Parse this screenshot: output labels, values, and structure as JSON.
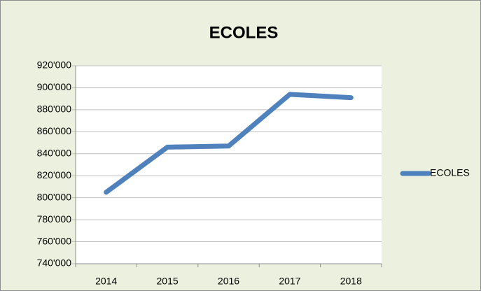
{
  "chart_data": {
    "type": "line",
    "title": "ECOLES",
    "categories": [
      "2014",
      "2015",
      "2016",
      "2017",
      "2018"
    ],
    "series": [
      {
        "name": "ECOLES",
        "color": "#4f81bd",
        "values": [
          805000,
          846000,
          847000,
          894000,
          891000
        ]
      }
    ],
    "ylim": [
      740000,
      920000
    ],
    "yticks": [
      {
        "value": 740000,
        "label": "740'000"
      },
      {
        "value": 760000,
        "label": "760'000"
      },
      {
        "value": 780000,
        "label": "780'000"
      },
      {
        "value": 800000,
        "label": "800'000"
      },
      {
        "value": 820000,
        "label": "820'000"
      },
      {
        "value": 840000,
        "label": "840'000"
      },
      {
        "value": 860000,
        "label": "860'000"
      },
      {
        "value": 880000,
        "label": "880'000"
      },
      {
        "value": 900000,
        "label": "900'000"
      },
      {
        "value": 920000,
        "label": "920'000"
      }
    ],
    "grid": true,
    "legend": "right"
  }
}
